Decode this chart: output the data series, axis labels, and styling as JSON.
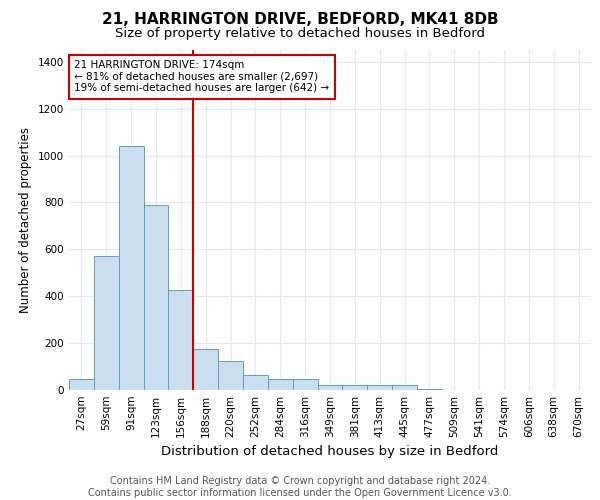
{
  "title": "21, HARRINGTON DRIVE, BEDFORD, MK41 8DB",
  "subtitle": "Size of property relative to detached houses in Bedford",
  "xlabel": "Distribution of detached houses by size in Bedford",
  "ylabel": "Number of detached properties",
  "categories": [
    "27sqm",
    "59sqm",
    "91sqm",
    "123sqm",
    "156sqm",
    "188sqm",
    "220sqm",
    "252sqm",
    "284sqm",
    "316sqm",
    "349sqm",
    "381sqm",
    "413sqm",
    "445sqm",
    "477sqm",
    "509sqm",
    "541sqm",
    "574sqm",
    "606sqm",
    "638sqm",
    "670sqm"
  ],
  "values": [
    47,
    570,
    1040,
    790,
    425,
    175,
    125,
    65,
    47,
    47,
    20,
    20,
    20,
    20,
    5,
    0,
    0,
    0,
    0,
    0,
    0
  ],
  "bar_color": "#c9dff0",
  "bar_edge_color": "#6699bb",
  "ylim": [
    0,
    1450
  ],
  "yticks": [
    0,
    200,
    400,
    600,
    800,
    1000,
    1200,
    1400
  ],
  "red_line_index": 5,
  "annotation_text": "21 HARRINGTON DRIVE: 174sqm\n← 81% of detached houses are smaller (2,697)\n19% of semi-detached houses are larger (642) →",
  "annotation_box_color": "#ffffff",
  "annotation_box_edge": "#cc0000",
  "red_line_color": "#cc0000",
  "footer_line1": "Contains HM Land Registry data © Crown copyright and database right 2024.",
  "footer_line2": "Contains public sector information licensed under the Open Government Licence v3.0.",
  "background_color": "#ffffff",
  "plot_background": "#ffffff",
  "grid_color": "#e0e8f0",
  "title_fontsize": 11,
  "subtitle_fontsize": 9.5,
  "xlabel_fontsize": 9.5,
  "ylabel_fontsize": 8.5,
  "tick_fontsize": 7.5,
  "annotation_fontsize": 7.5,
  "footer_fontsize": 7
}
